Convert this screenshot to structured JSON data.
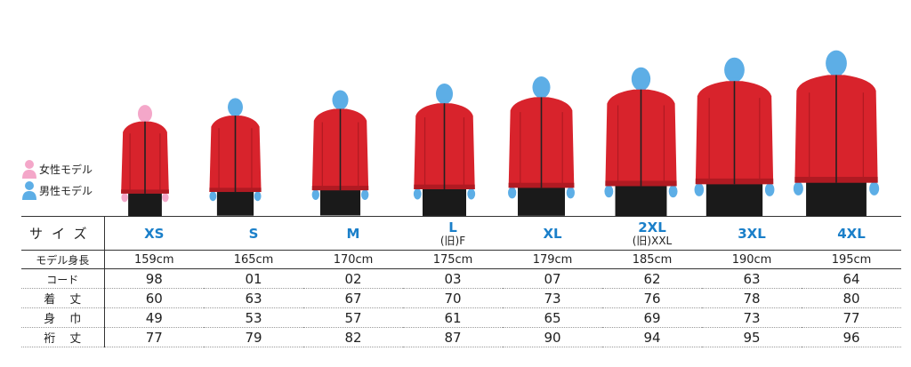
{
  "legend": {
    "female_label": "女性モデル",
    "male_label": "男性モデル",
    "female_color": "#f4a7c9",
    "male_color": "#5daee6"
  },
  "colors": {
    "jacket": "#d8232c",
    "jacket_shadow": "#b01a22",
    "pants": "#1a1a1a",
    "accent_blue": "#1a7fc9"
  },
  "table": {
    "size_header": "サイズ",
    "height_header": "モデル身長",
    "sizes": [
      {
        "label": "XS",
        "old": ""
      },
      {
        "label": "S",
        "old": ""
      },
      {
        "label": "M",
        "old": ""
      },
      {
        "label": "L",
        "old": "(旧)F"
      },
      {
        "label": "XL",
        "old": ""
      },
      {
        "label": "2XL",
        "old": "(旧)XXL"
      },
      {
        "label": "3XL",
        "old": ""
      },
      {
        "label": "4XL",
        "old": ""
      }
    ],
    "heights": [
      "159cm",
      "165cm",
      "170cm",
      "175cm",
      "179cm",
      "185cm",
      "190cm",
      "195cm"
    ],
    "rows": [
      {
        "label": "コード",
        "values": [
          "98",
          "01",
          "02",
          "03",
          "07",
          "62",
          "63",
          "64"
        ]
      },
      {
        "label": "着丈",
        "values": [
          "60",
          "63",
          "67",
          "70",
          "73",
          "76",
          "78",
          "80"
        ]
      },
      {
        "label": "身巾",
        "values": [
          "49",
          "53",
          "57",
          "61",
          "65",
          "69",
          "73",
          "77"
        ]
      },
      {
        "label": "裄丈",
        "values": [
          "77",
          "79",
          "82",
          "87",
          "90",
          "94",
          "95",
          "96"
        ]
      }
    ]
  }
}
